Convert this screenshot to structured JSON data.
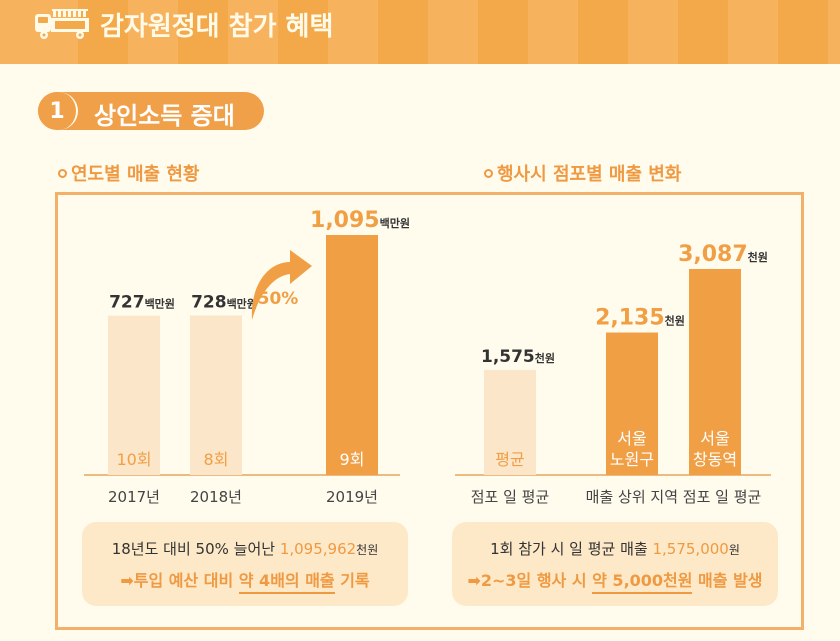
{
  "header": {
    "icon": "food-truck-icon",
    "title": "감자원정대 참가 혜택"
  },
  "section": {
    "number": "1",
    "title": "상인소득 증대"
  },
  "colors": {
    "accent": "#f19f45",
    "light_bar": "#fbe6c9",
    "frame": "#f3b06a",
    "background": "#fffcee"
  },
  "left": {
    "subtitle": "연도별 매출 현황",
    "growth_label": "50%",
    "summary": {
      "line1_prefix": "18년도 대비 50% 늘어난 ",
      "line1_value": "1,095,962",
      "line1_unit": "천원",
      "line2_arrow": "➡",
      "line2_prefix": "투입 예산 대비 ",
      "line2_underlined": "약 4배의 매출",
      "line2_suffix": " 기록"
    }
  },
  "right": {
    "subtitle": "행사시 점포별 매출 변화",
    "summary": {
      "line1_prefix": "1회 참가 시 일 평균 매출 ",
      "line1_value": "1,575,000",
      "line1_unit": "원",
      "line2_arrow": "➡",
      "line2_prefix": "2~3일 행사 시 ",
      "line2_underlined": "약 5,000천원",
      "line2_suffix": " 매출 발생"
    }
  },
  "chart_data": [
    {
      "type": "bar",
      "title": "연도별 매출 현황",
      "categories": [
        "2017년",
        "2018년",
        "2019년"
      ],
      "values": [
        727,
        728,
        1095
      ],
      "value_labels": [
        "727",
        "728",
        "1,095"
      ],
      "unit": "백만원",
      "inner_labels": [
        "10회",
        "8회",
        "9회"
      ],
      "highlight": [
        false,
        false,
        true
      ],
      "annotation": "50%",
      "xlabel": "",
      "ylabel": "",
      "ylim": [
        0,
        1200
      ]
    },
    {
      "type": "bar",
      "title": "행사시 점포별 매출 변화",
      "categories": [
        "평균",
        "서울 노원구",
        "서울 창동역"
      ],
      "values": [
        1575,
        2135,
        3087
      ],
      "value_labels": [
        "1,575",
        "2,135",
        "3,087"
      ],
      "unit": "천원",
      "inner_labels": [
        [
          "평균"
        ],
        [
          "서울",
          "노원구"
        ],
        [
          "서울",
          "창동역"
        ]
      ],
      "highlight": [
        false,
        true,
        true
      ],
      "group_labels": [
        "점포 일 평균",
        "매출 상위 지역 점포 일 평균"
      ],
      "xlabel": "",
      "ylabel": "",
      "ylim": [
        0,
        3500
      ]
    }
  ]
}
